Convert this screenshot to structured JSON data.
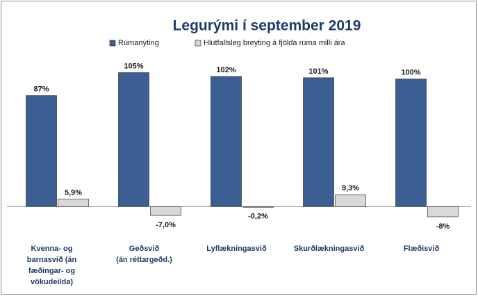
{
  "chart_data": {
    "type": "bar",
    "title": "Legurými  í  september 2019",
    "categories": [
      [
        "Kvenna- og",
        "barnasvið  (án",
        "fæðingar- og",
        "vökudeilda)"
      ],
      [
        "Geðsvið",
        "(án réttargeðd.)"
      ],
      [
        "Lyflækningasvið"
      ],
      [
        "Skurðlækningasvið"
      ],
      [
        "Flæðisvið"
      ]
    ],
    "series": [
      {
        "name": "Rúmanýting",
        "color": "#3b5f93",
        "values": [
          87,
          105,
          102,
          101,
          100
        ],
        "value_labels": [
          "87%",
          "105%",
          "102%",
          "101%",
          "100%"
        ]
      },
      {
        "name": "Hlutfallsleg breyting á fjölda rúma milli ára",
        "color": "#d9d9d9",
        "values": [
          5.9,
          -7.0,
          -0.2,
          9.3,
          -8
        ],
        "value_labels": [
          "5,9%",
          "-7,0%",
          "-0,2%",
          "9,3%",
          "-8%"
        ]
      }
    ],
    "ylim": [
      -20,
      120
    ]
  }
}
